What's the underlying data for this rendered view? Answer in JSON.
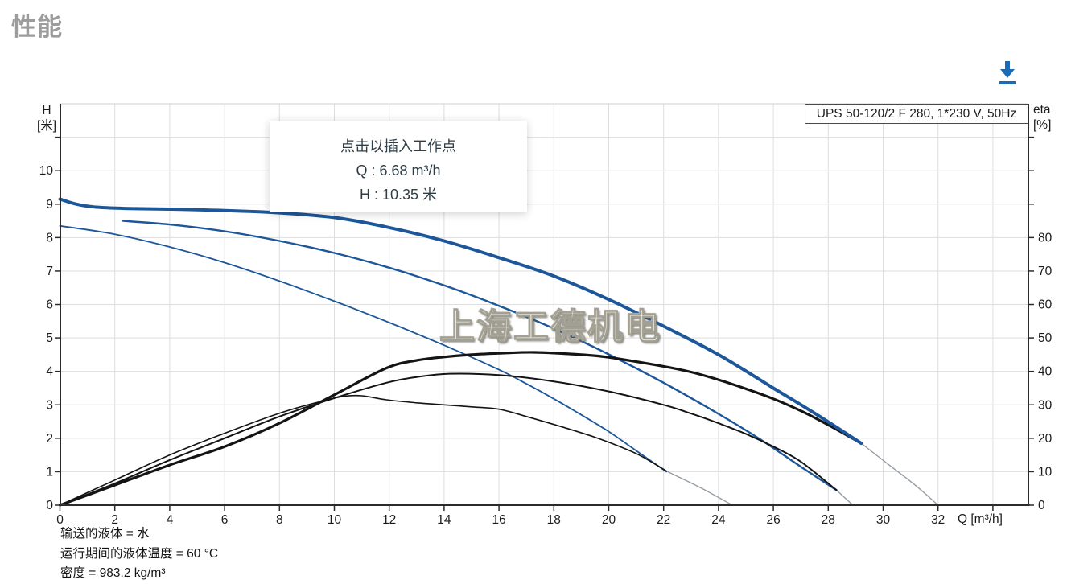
{
  "page": {
    "title": "性能"
  },
  "toolbar": {
    "download_icon": "download-arrow",
    "accent_color": "#1a6ab5"
  },
  "chart": {
    "model_label": "UPS 50-120/2 F 280, 1*230 V, 50Hz",
    "tooltip": {
      "line1": "点击以插入工作点",
      "line2": "Q : 6.68 m³/h",
      "line3": "H : 10.35 米"
    },
    "watermark": "上海工德机电",
    "h_axis_line1": "H",
    "h_axis_line2": "[米]",
    "eta_axis_line1": "eta",
    "eta_axis_line2": "[%]",
    "q_axis_label": "Q [m³/h]",
    "footnotes": [
      "输送的液体 = 水",
      "运行期间的液体温度 = 60 °C",
      "密度 = 983.2 kg/m³"
    ]
  },
  "chart_data": {
    "type": "line",
    "title": "UPS 50-120/2 F 280, 1*230 V, 50Hz",
    "xlabel": "Q [m³/h]",
    "ylabel_left": "H [米]",
    "ylabel_right": "eta [%]",
    "x_axis": {
      "min": 0,
      "max": 35.3,
      "ticks_labeled": [
        0,
        2,
        4,
        6,
        8,
        10,
        12,
        14,
        16,
        18,
        20,
        22,
        24,
        26,
        28,
        30,
        32
      ],
      "ticks_unlabeled": [
        34
      ]
    },
    "y_left": {
      "min": 0,
      "max": 12,
      "ticks_labeled": [
        0,
        1,
        2,
        3,
        4,
        5,
        6,
        7,
        8,
        9,
        10
      ],
      "ticks_unlabeled": [
        11
      ]
    },
    "y_right": {
      "min": 0,
      "max": 120,
      "ticks_labeled": [
        0,
        10,
        20,
        30,
        40,
        50,
        60,
        70,
        80
      ],
      "ticks_unlabeled": [
        90,
        100,
        110
      ]
    },
    "grid": true,
    "legend": "none",
    "duty_point_tooltip": {
      "Q_m3h": 6.68,
      "H_m": 10.35
    },
    "colors": {
      "h_curve": "#1d5799",
      "eta_curve": "#141414",
      "extension": "#979da6",
      "grid": "#dedede",
      "axis": "#2b2b2b",
      "border_top": "#cfcfcf"
    },
    "series": [
      {
        "name": "eta-extension-speed1",
        "axis": "H",
        "color": "#979da6",
        "width": 1.4,
        "points": [
          [
            22.1,
            1.02
          ],
          [
            23.4,
            0.5
          ],
          [
            24.5,
            0
          ]
        ]
      },
      {
        "name": "eta-extension-speed2",
        "axis": "H",
        "color": "#979da6",
        "width": 1.4,
        "points": [
          [
            28.3,
            0.45
          ],
          [
            28.9,
            0
          ]
        ]
      },
      {
        "name": "eta-extension-speed3",
        "axis": "H",
        "color": "#979da6",
        "width": 1.4,
        "points": [
          [
            29.2,
            1.85
          ],
          [
            30.3,
            1.15
          ],
          [
            31.2,
            0.58
          ],
          [
            32,
            0
          ]
        ]
      },
      {
        "name": "H-curve-speed1",
        "axis": "H",
        "color": "#1d5799",
        "width": 1.8,
        "points": [
          [
            0,
            8.35
          ],
          [
            2,
            8.1
          ],
          [
            4,
            7.72
          ],
          [
            6,
            7.25
          ],
          [
            8,
            6.7
          ],
          [
            10,
            6.1
          ],
          [
            12,
            5.46
          ],
          [
            14,
            4.78
          ],
          [
            16,
            4.05
          ],
          [
            17,
            3.63
          ],
          [
            18,
            3.18
          ],
          [
            19,
            2.7
          ],
          [
            20,
            2.2
          ],
          [
            21,
            1.63
          ],
          [
            22.1,
            1.0
          ]
        ]
      },
      {
        "name": "H-curve-speed2",
        "axis": "H",
        "color": "#1d5799",
        "width": 2.4,
        "points": [
          [
            2.3,
            8.5
          ],
          [
            4,
            8.39
          ],
          [
            6,
            8.19
          ],
          [
            8,
            7.9
          ],
          [
            10,
            7.54
          ],
          [
            12,
            7.1
          ],
          [
            14,
            6.57
          ],
          [
            16,
            5.96
          ],
          [
            18,
            5.28
          ],
          [
            20,
            4.51
          ],
          [
            22,
            3.66
          ],
          [
            24,
            2.73
          ],
          [
            25.5,
            1.98
          ],
          [
            27,
            1.15
          ],
          [
            28.3,
            0.45
          ]
        ]
      },
      {
        "name": "eta-curve-speed1",
        "axis": "eta",
        "color": "#141414",
        "width": 1.6,
        "points": [
          [
            0,
            0
          ],
          [
            2,
            7.5
          ],
          [
            4,
            15
          ],
          [
            6,
            21.5
          ],
          [
            8,
            27.5
          ],
          [
            9.5,
            31
          ],
          [
            10.3,
            32.5
          ],
          [
            11,
            32.7
          ],
          [
            11.9,
            31.5
          ],
          [
            13,
            30.6
          ],
          [
            14,
            30
          ],
          [
            15,
            29.4
          ],
          [
            16,
            28.7
          ],
          [
            17,
            26.5
          ],
          [
            18.3,
            23.4
          ],
          [
            19.5,
            20.3
          ],
          [
            20.5,
            17.2
          ],
          [
            21.2,
            14.6
          ],
          [
            22.1,
            10.2
          ]
        ]
      },
      {
        "name": "eta-curve-speed2",
        "axis": "eta",
        "color": "#141414",
        "width": 2,
        "points": [
          [
            0,
            0
          ],
          [
            2,
            6.5
          ],
          [
            4,
            13.5
          ],
          [
            6,
            20
          ],
          [
            8,
            26.5
          ],
          [
            10,
            32
          ],
          [
            11.9,
            36.6
          ],
          [
            13,
            38.3
          ],
          [
            14.2,
            39.3
          ],
          [
            16,
            38.9
          ],
          [
            18,
            37
          ],
          [
            20,
            34
          ],
          [
            22,
            30
          ],
          [
            23,
            27.4
          ],
          [
            24,
            24.5
          ],
          [
            25,
            21.3
          ],
          [
            26,
            17.5
          ],
          [
            27,
            13
          ],
          [
            28.3,
            4.5
          ]
        ]
      },
      {
        "name": "eta-curve-speed3",
        "axis": "eta",
        "color": "#141414",
        "width": 3.2,
        "points": [
          [
            0,
            0
          ],
          [
            2,
            6
          ],
          [
            4,
            12
          ],
          [
            6,
            17.5
          ],
          [
            8,
            24.5
          ],
          [
            10,
            33
          ],
          [
            11.9,
            41
          ],
          [
            13,
            43.3
          ],
          [
            14,
            44.3
          ],
          [
            15,
            45
          ],
          [
            16,
            45.4
          ],
          [
            17.3,
            45.7
          ],
          [
            19,
            45
          ],
          [
            20,
            44.2
          ],
          [
            22,
            41.5
          ],
          [
            23,
            39.8
          ],
          [
            24,
            37.5
          ],
          [
            25,
            34.8
          ],
          [
            26,
            31.8
          ],
          [
            27,
            28.2
          ],
          [
            28,
            24
          ],
          [
            29.2,
            18.5
          ]
        ]
      },
      {
        "name": "H-curve-speed3-bold",
        "axis": "H",
        "color": "#1d5799",
        "width": 4,
        "points": [
          [
            0,
            9.15
          ],
          [
            0.5,
            9.02
          ],
          [
            1,
            8.94
          ],
          [
            1.5,
            8.9
          ],
          [
            2.5,
            8.87
          ],
          [
            4,
            8.85
          ],
          [
            6,
            8.81
          ],
          [
            8,
            8.74
          ],
          [
            10,
            8.6
          ],
          [
            12,
            8.3
          ],
          [
            14,
            7.9
          ],
          [
            16,
            7.4
          ],
          [
            18,
            6.85
          ],
          [
            20,
            6.15
          ],
          [
            22,
            5.35
          ],
          [
            24,
            4.5
          ],
          [
            26,
            3.5
          ],
          [
            27.5,
            2.75
          ],
          [
            29.2,
            1.85
          ]
        ]
      }
    ]
  }
}
